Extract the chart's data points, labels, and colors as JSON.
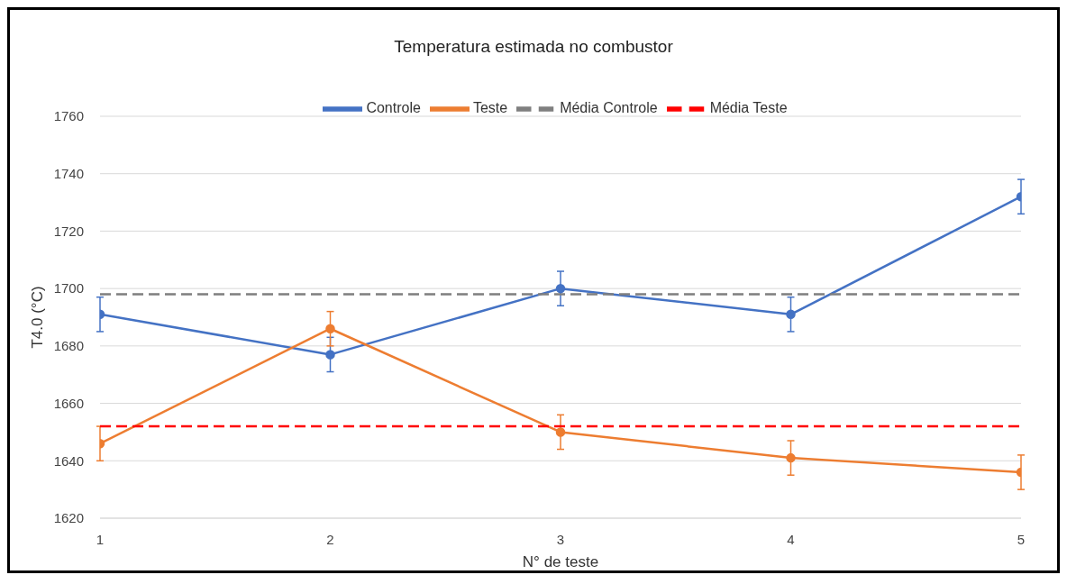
{
  "chart_data": {
    "type": "line",
    "title": "Temperatura  estimada no combustor",
    "xlabel": "N° de teste",
    "ylabel": "T4.0 (°C)",
    "x": [
      1,
      2,
      3,
      4,
      5
    ],
    "xlim": [
      1,
      5
    ],
    "xticks": [
      1,
      2,
      3,
      4,
      5
    ],
    "ylim": [
      1620,
      1760
    ],
    "yticks": [
      1620,
      1640,
      1660,
      1680,
      1700,
      1720,
      1740,
      1760
    ],
    "grid": "y",
    "legend": "top",
    "marker": "circle",
    "series": [
      {
        "name": "Controle",
        "color": "#4472c4",
        "values": [
          1691,
          1677,
          1700,
          1691,
          1732
        ],
        "errors": [
          6,
          6,
          6,
          6,
          6
        ]
      },
      {
        "name": "Teste",
        "color": "#ed7d31",
        "values": [
          1646,
          1686,
          1650,
          1641,
          1636
        ],
        "errors": [
          6,
          6,
          6,
          6,
          6
        ]
      },
      {
        "name": "Média Controle",
        "color": "#7f7f7f",
        "values": [
          1698,
          1698,
          1698,
          1698,
          1698
        ],
        "line_style": "dashed",
        "marker": "none"
      },
      {
        "name": "Média Teste",
        "color": "#ff0000",
        "values": [
          1652,
          1652,
          1652,
          1652,
          1652
        ],
        "line_style": "dashed",
        "marker": "none"
      }
    ]
  }
}
